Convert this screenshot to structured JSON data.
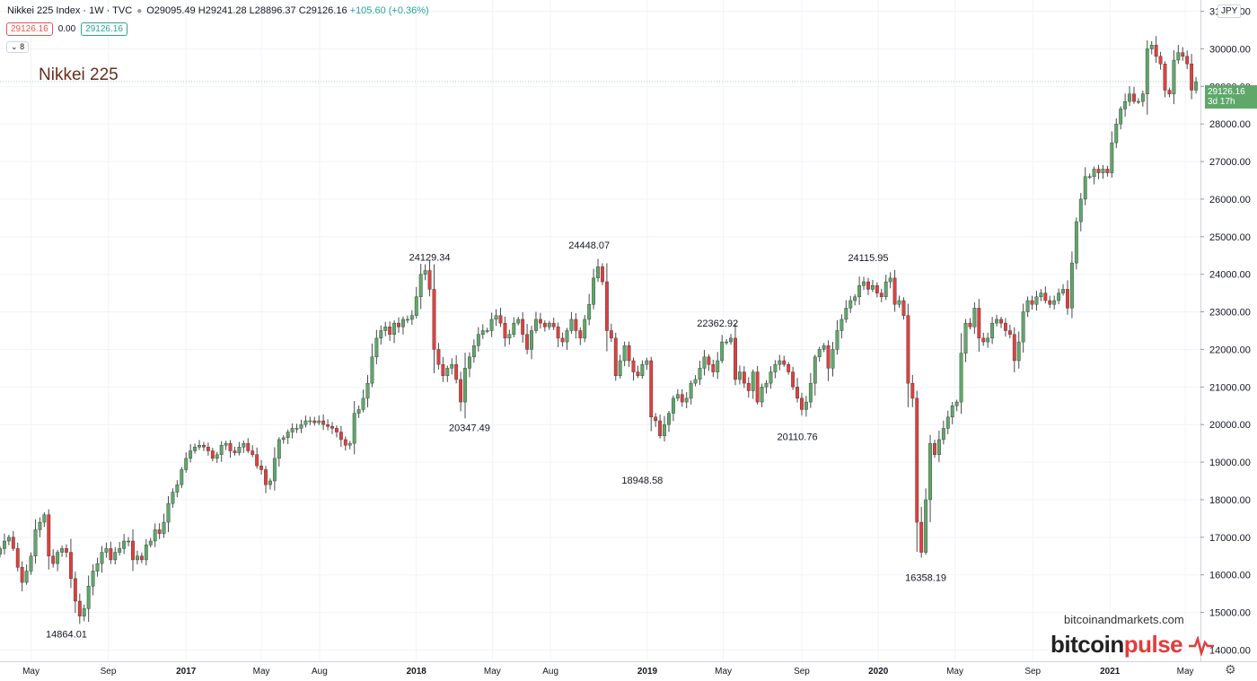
{
  "legend": {
    "symbol": "Nikkei 225 Index · 1W · TVC",
    "open_label": "O",
    "open": "29095.49",
    "high_label": "H",
    "high": "29241.28",
    "low_label": "L",
    "low": "28896.37",
    "close_label": "C",
    "close": "29126.16",
    "change": "+105.60 (+0.36%)",
    "box_bid": "29126.16",
    "box_spread": "0.00",
    "box_ask": "29126.16",
    "indicator_toggle": "8"
  },
  "watermark_title": "Nikkei 225",
  "currency": "JPY",
  "last_price": {
    "value": "29126.16",
    "countdown": "3d 17h"
  },
  "branding": {
    "site": "bitcoinandmarkets.com",
    "logo_part1": "bitcoin",
    "logo_part2": "pulse"
  },
  "settings_icon": "gear-icon",
  "colors": {
    "up": "#5fa86a",
    "down": "#e0403f",
    "axis_text": "#131722",
    "grid": "#f0f3fa"
  },
  "chart_data": {
    "type": "candlestick",
    "title": "Nikkei 225",
    "ylim": [
      13700,
      31300
    ],
    "yticks": [
      14000,
      15000,
      16000,
      17000,
      18000,
      19000,
      20000,
      21000,
      22000,
      23000,
      24000,
      25000,
      26000,
      27000,
      28000,
      29000,
      30000,
      31000
    ],
    "ytick_labels": [
      "14000.00",
      "15000.00",
      "16000.00",
      "17000.00",
      "18000.00",
      "19000.00",
      "20000.00",
      "21000.00",
      "22000.00",
      "23000.00",
      "24000.00",
      "25000.00",
      "26000.00",
      "27000.00",
      "28000.00",
      "29000.00",
      "30000.00",
      "31000.00"
    ],
    "xlim": [
      "2016-03-14",
      "2021-05-24"
    ],
    "xticks": [
      {
        "label": "May",
        "date": "2016-05-02"
      },
      {
        "label": "Sep",
        "date": "2016-09-01"
      },
      {
        "label": "2017",
        "date": "2017-01-02"
      },
      {
        "label": "May",
        "date": "2017-05-01"
      },
      {
        "label": "Aug",
        "date": "2017-08-01"
      },
      {
        "label": "2018",
        "date": "2018-01-01"
      },
      {
        "label": "May",
        "date": "2018-05-01"
      },
      {
        "label": "Aug",
        "date": "2018-08-01"
      },
      {
        "label": "2019",
        "date": "2019-01-01"
      },
      {
        "label": "May",
        "date": "2019-05-01"
      },
      {
        "label": "Sep",
        "date": "2019-09-02"
      },
      {
        "label": "2020",
        "date": "2020-01-01"
      },
      {
        "label": "May",
        "date": "2020-05-01"
      },
      {
        "label": "Sep",
        "date": "2020-09-01"
      },
      {
        "label": "2021",
        "date": "2021-01-01"
      },
      {
        "label": "May",
        "date": "2021-04-30"
      }
    ],
    "annotations": [
      {
        "text": "14864.01",
        "date": "2016-06-27",
        "value": 14864.01,
        "pos": "below"
      },
      {
        "text": "24129.34",
        "date": "2018-01-22",
        "value": 24129.34,
        "pos": "above"
      },
      {
        "text": "20347.49",
        "date": "2018-03-26",
        "value": 20347.49,
        "pos": "below"
      },
      {
        "text": "24448.07",
        "date": "2018-10-01",
        "value": 24448.07,
        "pos": "above"
      },
      {
        "text": "18948.58",
        "date": "2018-12-24",
        "value": 18948.58,
        "pos": "below"
      },
      {
        "text": "22362.92",
        "date": "2019-04-22",
        "value": 22362.92,
        "pos": "above"
      },
      {
        "text": "20110.76",
        "date": "2019-08-26",
        "value": 20110.76,
        "pos": "below"
      },
      {
        "text": "24115.95",
        "date": "2019-12-16",
        "value": 24115.95,
        "pos": "above"
      },
      {
        "text": "16358.19",
        "date": "2020-03-16",
        "value": 16358.19,
        "pos": "below"
      }
    ],
    "start_date": "2016-03-14",
    "series": [
      {
        "name": "Nikkei 225",
        "close": [
          16700,
          16900,
          17000,
          16700,
          16200,
          15800,
          16100,
          16500,
          17200,
          17400,
          17600,
          16500,
          16300,
          16600,
          16700,
          16600,
          15900,
          15300,
          14900,
          15100,
          15700,
          16100,
          16300,
          16600,
          16700,
          16400,
          16600,
          16700,
          16900,
          16900,
          16400,
          16500,
          16400,
          16800,
          16900,
          17200,
          17100,
          17400,
          17900,
          18200,
          18400,
          18800,
          19100,
          19300,
          19400,
          19450,
          19400,
          19300,
          19100,
          19200,
          19450,
          19500,
          19300,
          19250,
          19400,
          19500,
          19300,
          19200,
          18900,
          18800,
          18400,
          18500,
          19100,
          19600,
          19650,
          19800,
          19900,
          19900,
          20000,
          20100,
          20100,
          20050,
          20100,
          20000,
          19950,
          19900,
          19800,
          19600,
          19450,
          19500,
          20300,
          20400,
          20700,
          21100,
          21800,
          22300,
          22500,
          22600,
          22400,
          22700,
          22600,
          22800,
          22800,
          22900,
          23400,
          24000,
          24100,
          23600,
          22000,
          21600,
          21300,
          21500,
          21600,
          21200,
          20600,
          21500,
          21800,
          22100,
          22400,
          22500,
          22500,
          22800,
          22900,
          22700,
          22300,
          22400,
          22700,
          22800,
          22400,
          22000,
          22500,
          22800,
          22700,
          22600,
          22700,
          22600,
          22300,
          22200,
          22500,
          22800,
          22500,
          22300,
          22800,
          23200,
          23900,
          24200,
          23800,
          22500,
          22300,
          21300,
          21700,
          22100,
          21700,
          21400,
          21300,
          21600,
          21700,
          20200,
          20100,
          19700,
          20000,
          20300,
          20700,
          20800,
          20600,
          20700,
          21100,
          21200,
          21500,
          21800,
          21600,
          21400,
          21700,
          22200,
          22200,
          22300,
          21200,
          21400,
          21100,
          20900,
          21400,
          20600,
          21000,
          21100,
          21400,
          21600,
          21700,
          21600,
          21400,
          21000,
          20700,
          20400,
          20600,
          21100,
          21800,
          22000,
          22100,
          21500,
          22000,
          22500,
          22800,
          23100,
          23300,
          23400,
          23700,
          23800,
          23600,
          23700,
          23500,
          23400,
          23800,
          23900,
          23200,
          23300,
          22900,
          21100,
          20700,
          17400,
          16600,
          18000,
          19500,
          19200,
          19600,
          19900,
          20200,
          20500,
          20600,
          21900,
          22700,
          22600,
          23100,
          22300,
          22200,
          22300,
          22700,
          22800,
          22700,
          22500,
          22400,
          21700,
          22200,
          23000,
          23300,
          23200,
          23400,
          23500,
          23300,
          23200,
          23300,
          23500,
          23600,
          23100,
          24300,
          25400,
          26000,
          26600,
          26600,
          26800,
          26700,
          26800,
          26700,
          27500,
          28000,
          28400,
          28600,
          28800,
          28600,
          28600,
          28800,
          30000,
          30100,
          29800,
          29600,
          28900,
          28800,
          29700,
          29900,
          29800,
          29600,
          28900,
          29126.16
        ]
      }
    ]
  }
}
